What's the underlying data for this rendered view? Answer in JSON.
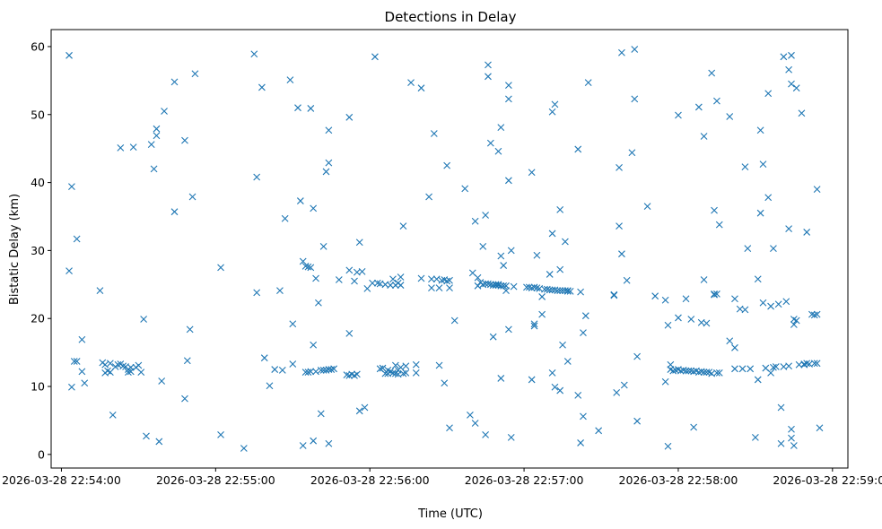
{
  "chart_data": {
    "type": "scatter",
    "title": "Detections in Delay",
    "xlabel": "Time (UTC)",
    "ylabel": "Bistatic Delay (km)",
    "x_units": "seconds after 2026-03-28 22:54:00",
    "xlim": [
      -4,
      306
    ],
    "ylim": [
      -2,
      62.5
    ],
    "x_ticks": [
      {
        "value": 0,
        "label": "2026-03-28 22:54:00"
      },
      {
        "value": 60,
        "label": "2026-03-28 22:55:00"
      },
      {
        "value": 120,
        "label": "2026-03-28 22:56:00"
      },
      {
        "value": 180,
        "label": "2026-03-28 22:57:00"
      },
      {
        "value": 240,
        "label": "2026-03-28 22:58:00"
      },
      {
        "value": 300,
        "label": "2026-03-28 22:59:00"
      }
    ],
    "y_ticks": [
      {
        "value": 0,
        "label": "0"
      },
      {
        "value": 10,
        "label": "10"
      },
      {
        "value": 20,
        "label": "20"
      },
      {
        "value": 30,
        "label": "30"
      },
      {
        "value": 40,
        "label": "40"
      },
      {
        "value": 50,
        "label": "50"
      },
      {
        "value": 60,
        "label": "60"
      }
    ],
    "marker": "x",
    "color": "#1f77b4",
    "points": [
      [
        3,
        58.7
      ],
      [
        3,
        27
      ],
      [
        4,
        9.9
      ],
      [
        4,
        39.4
      ],
      [
        5,
        13.7
      ],
      [
        6,
        31.7
      ],
      [
        6,
        13.7
      ],
      [
        8,
        12.2
      ],
      [
        8,
        16.9
      ],
      [
        9,
        10.5
      ],
      [
        15,
        24.1
      ],
      [
        16,
        13.5
      ],
      [
        17,
        13.2
      ],
      [
        17,
        12
      ],
      [
        18,
        12.3
      ],
      [
        19,
        13.4
      ],
      [
        19,
        12.1
      ],
      [
        20,
        5.8
      ],
      [
        21,
        12.9
      ],
      [
        22,
        13.2
      ],
      [
        23,
        45.1
      ],
      [
        23,
        13.3
      ],
      [
        24,
        13
      ],
      [
        25,
        12.9
      ],
      [
        26,
        12.5
      ],
      [
        26,
        12.1
      ],
      [
        27,
        12.8
      ],
      [
        27,
        12.2
      ],
      [
        28,
        45.2
      ],
      [
        29,
        12.8
      ],
      [
        30,
        13.1
      ],
      [
        31,
        12.1
      ],
      [
        32,
        19.9
      ],
      [
        33,
        2.7
      ],
      [
        35,
        45.6
      ],
      [
        36,
        42
      ],
      [
        37,
        47.9
      ],
      [
        37,
        46.9
      ],
      [
        38,
        1.9
      ],
      [
        39,
        10.8
      ],
      [
        40,
        50.5
      ],
      [
        44,
        54.8
      ],
      [
        44,
        35.7
      ],
      [
        48,
        46.2
      ],
      [
        48,
        8.2
      ],
      [
        49,
        13.8
      ],
      [
        50,
        18.4
      ],
      [
        51,
        37.9
      ],
      [
        52,
        56
      ],
      [
        62,
        27.5
      ],
      [
        62,
        2.9
      ],
      [
        71,
        0.9
      ],
      [
        75,
        58.9
      ],
      [
        76,
        23.8
      ],
      [
        76,
        40.8
      ],
      [
        78,
        54
      ],
      [
        79,
        14.2
      ],
      [
        81,
        10.1
      ],
      [
        83,
        12.5
      ],
      [
        85,
        24.1
      ],
      [
        86,
        12.4
      ],
      [
        87,
        34.7
      ],
      [
        89,
        55.1
      ],
      [
        90,
        19.2
      ],
      [
        90,
        13.3
      ],
      [
        92,
        51
      ],
      [
        93,
        37.3
      ],
      [
        94,
        1.3
      ],
      [
        94,
        28.4
      ],
      [
        95,
        12.1
      ],
      [
        95,
        27.7
      ],
      [
        96,
        27.6
      ],
      [
        96,
        12.1
      ],
      [
        97,
        50.9
      ],
      [
        97,
        27.5
      ],
      [
        97,
        12.2
      ],
      [
        98,
        36.2
      ],
      [
        98,
        2
      ],
      [
        98,
        16.1
      ],
      [
        99,
        25.9
      ],
      [
        99,
        12.2
      ],
      [
        100,
        22.3
      ],
      [
        101,
        6
      ],
      [
        101,
        12.4
      ],
      [
        102,
        30.6
      ],
      [
        102,
        12.4
      ],
      [
        103,
        41.6
      ],
      [
        103,
        12.4
      ],
      [
        104,
        42.9
      ],
      [
        104,
        47.7
      ],
      [
        104,
        12.5
      ],
      [
        104,
        1.6
      ],
      [
        105,
        12.5
      ],
      [
        106,
        12.6
      ],
      [
        108,
        25.7
      ],
      [
        111,
        11.7
      ],
      [
        112,
        49.6
      ],
      [
        112,
        17.8
      ],
      [
        112,
        27.1
      ],
      [
        112,
        11.6
      ],
      [
        113,
        11.8
      ],
      [
        114,
        25.5
      ],
      [
        114,
        11.6
      ],
      [
        115,
        11.8
      ],
      [
        115,
        26.8
      ],
      [
        116,
        6.4
      ],
      [
        116,
        31.2
      ],
      [
        117,
        26.9
      ],
      [
        118,
        6.9
      ],
      [
        119,
        24.4
      ],
      [
        121,
        25.2
      ],
      [
        122,
        58.5
      ],
      [
        123,
        25.2
      ],
      [
        124,
        12.6
      ],
      [
        124,
        25.1
      ],
      [
        125,
        12.7
      ],
      [
        126,
        25
      ],
      [
        126,
        11.9
      ],
      [
        127,
        12.4
      ],
      [
        127,
        11.9
      ],
      [
        128,
        12.2
      ],
      [
        128,
        24.9
      ],
      [
        129,
        25.8
      ],
      [
        129,
        12
      ],
      [
        130,
        11.9
      ],
      [
        130,
        24.9
      ],
      [
        130,
        13.1
      ],
      [
        131,
        25.2
      ],
      [
        131,
        12.4
      ],
      [
        131,
        11.8
      ],
      [
        132,
        12.8
      ],
      [
        132,
        26.1
      ],
      [
        132,
        24.9
      ],
      [
        133,
        11.9
      ],
      [
        133,
        33.6
      ],
      [
        134,
        12
      ],
      [
        134,
        13
      ],
      [
        136,
        54.7
      ],
      [
        138,
        12
      ],
      [
        138,
        13.2
      ],
      [
        140,
        25.9
      ],
      [
        140,
        53.9
      ],
      [
        143,
        37.9
      ],
      [
        144,
        25.8
      ],
      [
        144,
        24.5
      ],
      [
        145,
        47.2
      ],
      [
        146,
        25.8
      ],
      [
        147,
        13.1
      ],
      [
        147,
        24.5
      ],
      [
        148,
        25.6
      ],
      [
        149,
        10.5
      ],
      [
        149,
        25.7
      ],
      [
        150,
        25.5
      ],
      [
        150,
        42.5
      ],
      [
        151,
        25.6
      ],
      [
        151,
        24.5
      ],
      [
        151,
        3.9
      ],
      [
        153,
        19.7
      ],
      [
        157,
        39.1
      ],
      [
        159,
        5.8
      ],
      [
        160,
        26.7
      ],
      [
        161,
        4.6
      ],
      [
        161,
        34.3
      ],
      [
        162,
        24.8
      ],
      [
        162,
        26
      ],
      [
        163,
        25.3
      ],
      [
        164,
        30.6
      ],
      [
        164,
        25
      ],
      [
        165,
        25.1
      ],
      [
        165,
        35.2
      ],
      [
        165,
        2.9
      ],
      [
        166,
        25.1
      ],
      [
        166,
        57.3
      ],
      [
        166,
        55.6
      ],
      [
        167,
        45.8
      ],
      [
        167,
        25
      ],
      [
        168,
        24.9
      ],
      [
        168,
        17.3
      ],
      [
        169,
        25
      ],
      [
        169,
        24.9
      ],
      [
        170,
        25
      ],
      [
        170,
        44.6
      ],
      [
        170,
        24.9
      ],
      [
        171,
        48.1
      ],
      [
        171,
        29.2
      ],
      [
        171,
        11.2
      ],
      [
        171,
        24.8
      ],
      [
        172,
        27.8
      ],
      [
        172,
        24.8
      ],
      [
        173,
        24.1
      ],
      [
        173,
        24.8
      ],
      [
        174,
        52.3
      ],
      [
        174,
        54.3
      ],
      [
        174,
        40.3
      ],
      [
        174,
        18.4
      ],
      [
        175,
        30
      ],
      [
        175,
        2.5
      ],
      [
        176,
        24.7
      ],
      [
        181,
        24.6
      ],
      [
        182,
        24.6
      ],
      [
        183,
        24.5
      ],
      [
        183,
        11
      ],
      [
        183,
        41.5
      ],
      [
        184,
        24.6
      ],
      [
        184,
        19.2
      ],
      [
        184,
        18.9
      ],
      [
        185,
        29.3
      ],
      [
        185,
        24.5
      ],
      [
        186,
        24.4
      ],
      [
        187,
        23.2
      ],
      [
        187,
        20.6
      ],
      [
        188,
        24.3
      ],
      [
        189,
        24.3
      ],
      [
        190,
        26.5
      ],
      [
        190,
        24.2
      ],
      [
        191,
        50.4
      ],
      [
        191,
        24.2
      ],
      [
        191,
        32.5
      ],
      [
        191,
        12
      ],
      [
        192,
        24.2
      ],
      [
        192,
        51.5
      ],
      [
        192,
        9.9
      ],
      [
        193,
        24.1
      ],
      [
        194,
        24.1
      ],
      [
        194,
        36
      ],
      [
        194,
        27.2
      ],
      [
        194,
        9.4
      ],
      [
        195,
        24.1
      ],
      [
        195,
        16.1
      ],
      [
        196,
        24.1
      ],
      [
        196,
        31.3
      ],
      [
        197,
        24.1
      ],
      [
        197,
        24
      ],
      [
        197,
        13.7
      ],
      [
        198,
        24
      ],
      [
        201,
        44.9
      ],
      [
        201,
        8.7
      ],
      [
        202,
        23.9
      ],
      [
        202,
        1.7
      ],
      [
        203,
        5.6
      ],
      [
        203,
        17.9
      ],
      [
        204,
        20.4
      ],
      [
        205,
        54.7
      ],
      [
        209,
        3.5
      ],
      [
        215,
        23.5
      ],
      [
        215,
        23.4
      ],
      [
        216,
        9.1
      ],
      [
        217,
        33.6
      ],
      [
        217,
        42.2
      ],
      [
        218,
        59.1
      ],
      [
        218,
        29.5
      ],
      [
        219,
        10.2
      ],
      [
        220,
        25.6
      ],
      [
        222,
        44.4
      ],
      [
        223,
        59.6
      ],
      [
        223,
        52.3
      ],
      [
        224,
        4.9
      ],
      [
        224,
        14.4
      ],
      [
        228,
        36.5
      ],
      [
        231,
        23.3
      ],
      [
        235,
        22.7
      ],
      [
        235,
        10.7
      ],
      [
        236,
        19
      ],
      [
        236,
        1.2
      ],
      [
        237,
        13.2
      ],
      [
        237,
        12.5
      ],
      [
        238,
        12.3
      ],
      [
        239,
        12.4
      ],
      [
        240,
        12.5
      ],
      [
        240,
        49.9
      ],
      [
        240,
        20.1
      ],
      [
        241,
        12.3
      ],
      [
        242,
        12.4
      ],
      [
        243,
        12.3
      ],
      [
        243,
        22.9
      ],
      [
        244,
        12.3
      ],
      [
        245,
        12.3
      ],
      [
        245,
        19.9
      ],
      [
        246,
        12.2
      ],
      [
        246,
        4
      ],
      [
        247,
        12.3
      ],
      [
        248,
        12.1
      ],
      [
        248,
        51.1
      ],
      [
        249,
        12.2
      ],
      [
        249,
        19.4
      ],
      [
        250,
        12.1
      ],
      [
        250,
        25.7
      ],
      [
        250,
        46.8
      ],
      [
        251,
        12.1
      ],
      [
        251,
        19.3
      ],
      [
        252,
        12.1
      ],
      [
        253,
        11.9
      ],
      [
        253,
        56.1
      ],
      [
        254,
        23.6
      ],
      [
        254,
        23.5
      ],
      [
        254,
        35.9
      ],
      [
        255,
        12
      ],
      [
        255,
        23.6
      ],
      [
        255,
        52
      ],
      [
        256,
        33.8
      ],
      [
        256,
        12
      ],
      [
        260,
        16.7
      ],
      [
        260,
        49.7
      ],
      [
        262,
        22.9
      ],
      [
        262,
        15.7
      ],
      [
        262,
        12.6
      ],
      [
        264,
        21.4
      ],
      [
        265,
        12.6
      ],
      [
        266,
        21.3
      ],
      [
        266,
        42.3
      ],
      [
        267,
        30.3
      ],
      [
        268,
        12.6
      ],
      [
        270,
        2.5
      ],
      [
        271,
        25.8
      ],
      [
        271,
        11
      ],
      [
        272,
        35.5
      ],
      [
        272,
        47.7
      ],
      [
        273,
        42.7
      ],
      [
        273,
        22.3
      ],
      [
        274,
        12.7
      ],
      [
        275,
        53.1
      ],
      [
        275,
        37.8
      ],
      [
        276,
        21.8
      ],
      [
        276,
        12
      ],
      [
        277,
        12.8
      ],
      [
        277,
        30.3
      ],
      [
        278,
        12.9
      ],
      [
        279,
        22.1
      ],
      [
        280,
        6.9
      ],
      [
        280,
        1.6
      ],
      [
        281,
        58.5
      ],
      [
        281,
        12.9
      ],
      [
        282,
        22.5
      ],
      [
        283,
        56.6
      ],
      [
        283,
        33.2
      ],
      [
        283,
        13
      ],
      [
        284,
        58.7
      ],
      [
        284,
        54.5
      ],
      [
        284,
        3.7
      ],
      [
        284,
        2.4
      ],
      [
        285,
        1.3
      ],
      [
        285,
        19.1
      ],
      [
        285,
        19.9
      ],
      [
        286,
        53.9
      ],
      [
        286,
        19.7
      ],
      [
        287,
        13.2
      ],
      [
        288,
        50.2
      ],
      [
        289,
        13.2
      ],
      [
        289,
        13.3
      ],
      [
        290,
        32.7
      ],
      [
        290,
        13.4
      ],
      [
        291,
        13.3
      ],
      [
        292,
        20.6
      ],
      [
        293,
        13.4
      ],
      [
        293,
        20.5
      ],
      [
        294,
        39
      ],
      [
        294,
        20.6
      ],
      [
        294,
        13.4
      ],
      [
        295,
        3.9
      ]
    ]
  }
}
